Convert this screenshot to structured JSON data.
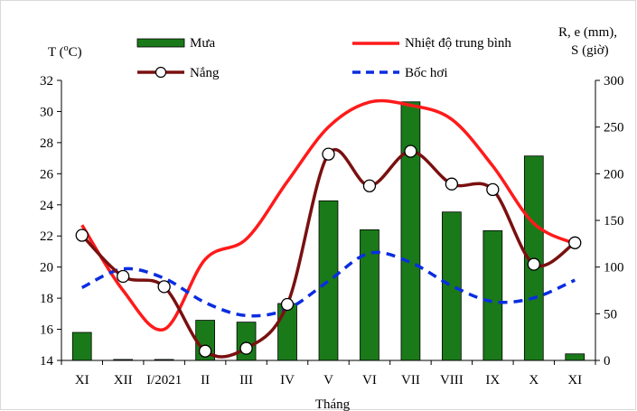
{
  "chart_data": {
    "type": "bar",
    "categories": [
      "XI",
      "XII",
      "I/2021",
      "II",
      "III",
      "IV",
      "V",
      "VI",
      "VII",
      "VIII",
      "IX",
      "X",
      "XI"
    ],
    "xlabel": "Tháng",
    "ylabel_left": "T (oC)",
    "ylabel_left_parts": {
      "base": "T (",
      "sup": "o",
      "rest": "C)"
    },
    "ylabel_right_line1": "R, e (mm),",
    "ylabel_right_line2": "S (giờ)",
    "ylim_left": [
      14,
      32
    ],
    "yticks_left": [
      "14",
      "16",
      "18",
      "20",
      "22",
      "24",
      "26",
      "28",
      "30",
      "32"
    ],
    "ylim_right": [
      0,
      300
    ],
    "yticks_right": [
      "0",
      "50",
      "100",
      "150",
      "200",
      "250",
      "300"
    ],
    "grid": false,
    "legend_position": "top",
    "series": [
      {
        "name": "Mưa",
        "type": "bar",
        "axis": "right",
        "color": "#1a7a1a",
        "values": [
          30,
          1,
          1,
          43,
          41,
          61,
          171,
          140,
          277,
          159,
          139,
          219,
          7
        ]
      },
      {
        "name": "Nhiệt độ trung bình",
        "type": "line",
        "axis": "left",
        "color": "#ff1a1a",
        "values": [
          22.7,
          18.5,
          16.0,
          20.5,
          21.8,
          25.5,
          29.0,
          30.6,
          30.4,
          29.5,
          26.5,
          22.8,
          21.5
        ]
      },
      {
        "name": "Nắng",
        "type": "line-marker",
        "axis": "right",
        "color": "#7a1010",
        "values": [
          134,
          90,
          79,
          10,
          13,
          60,
          221,
          187,
          224,
          189,
          183,
          103,
          126
        ]
      },
      {
        "name": "Bốc hơi",
        "type": "line-dashed",
        "axis": "right",
        "color": "#0a2de0",
        "values": [
          78,
          98,
          88,
          62,
          48,
          55,
          85,
          115,
          105,
          80,
          63,
          67,
          86
        ]
      }
    ]
  }
}
